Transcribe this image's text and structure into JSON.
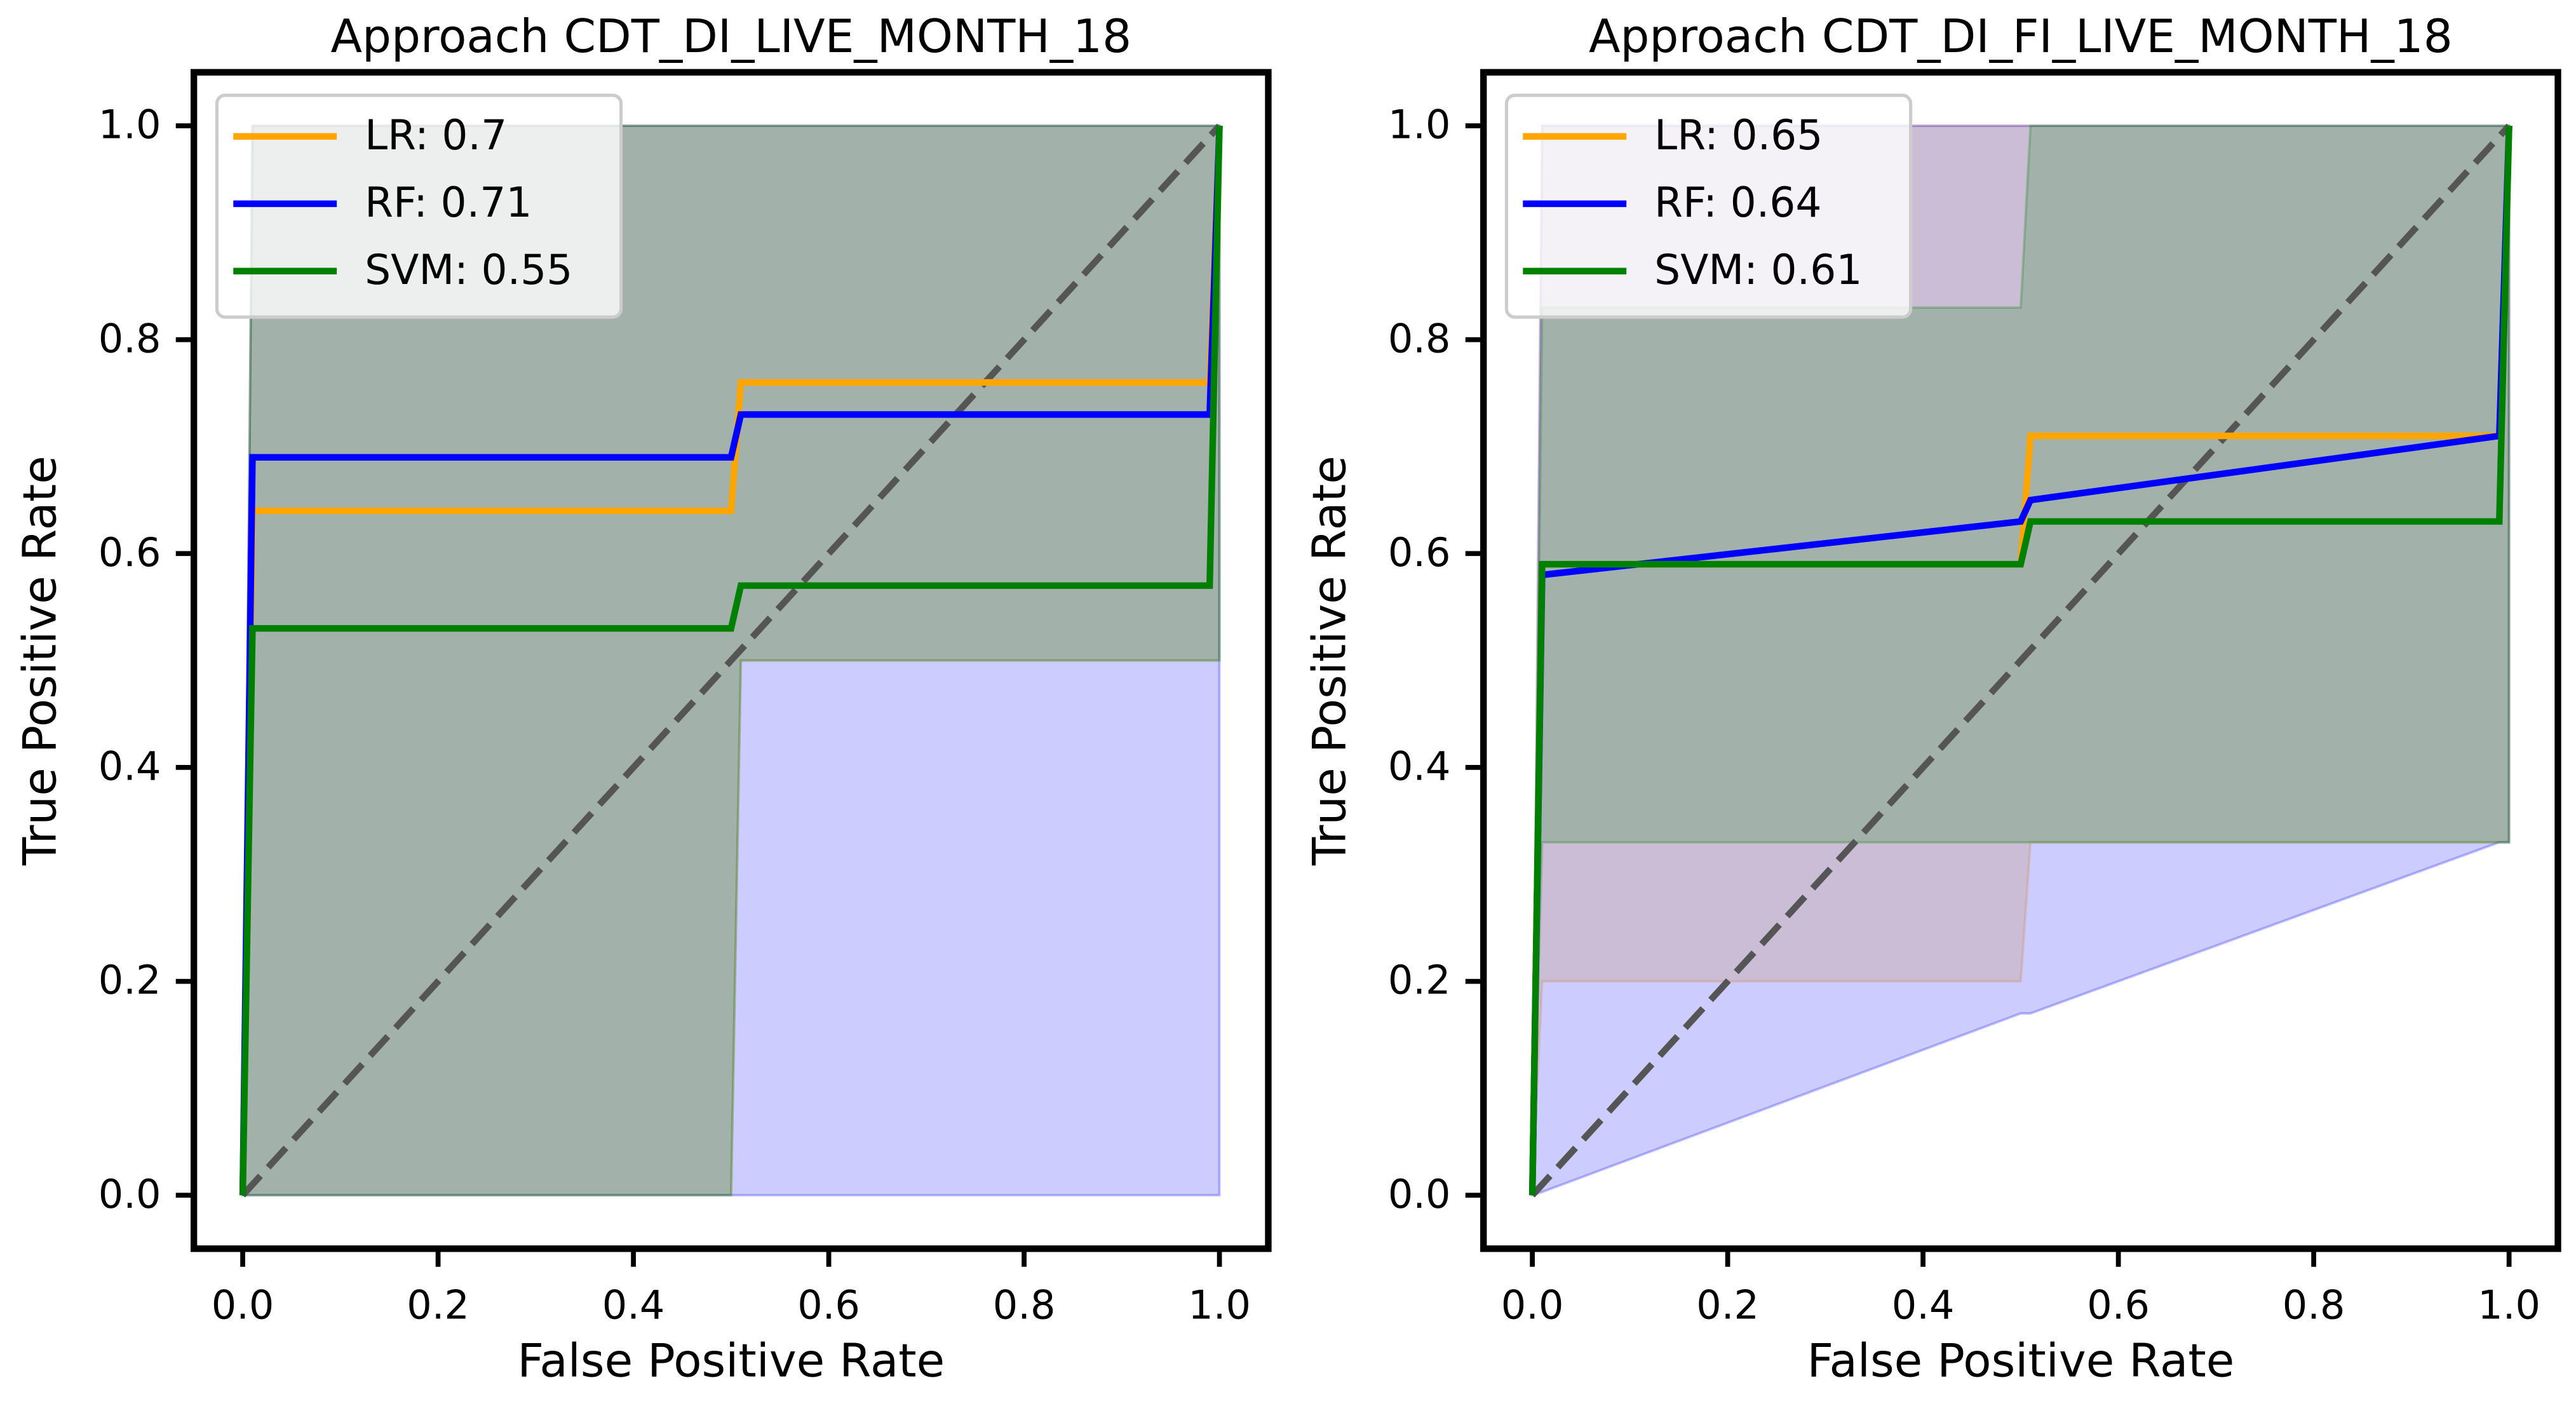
{
  "chart_data": [
    {
      "type": "line",
      "title": "Approach CDT_DI_LIVE_MONTH_18",
      "xlabel": "False Positive Rate",
      "ylabel": "True Positive Rate",
      "xlim": [
        -0.05,
        1.05
      ],
      "ylim": [
        -0.05,
        1.05
      ],
      "xticks": [
        {
          "value": 0,
          "label": "0.0"
        },
        0.2,
        0.4,
        0.6,
        0.8,
        {
          "value": 1,
          "label": "1.0"
        }
      ],
      "yticks": [
        {
          "value": 0,
          "label": "0.0"
        },
        0.2,
        0.4,
        0.6,
        0.8,
        {
          "value": 1,
          "label": "1.0"
        }
      ],
      "legend": "upper left",
      "reference_line": {
        "x": [
          0,
          1
        ],
        "values": [
          0,
          1
        ],
        "color": "#555555"
      },
      "series": [
        {
          "name": "LR: 0.7",
          "color": "#ffa500",
          "x": [
            0,
            0.01,
            0.5,
            0.51,
            0.99,
            1
          ],
          "values": [
            0,
            0.64,
            0.64,
            0.76,
            0.76,
            1
          ],
          "lower": [
            0,
            0,
            0,
            0.5,
            0.5,
            0.5
          ],
          "upper": [
            0,
            1,
            1,
            1,
            1,
            1
          ]
        },
        {
          "name": "RF: 0.71",
          "color": "#0000ff",
          "x": [
            0,
            0.01,
            0.5,
            0.51,
            0.99,
            1
          ],
          "values": [
            0,
            0.69,
            0.69,
            0.73,
            0.73,
            1
          ],
          "lower": [
            0,
            0,
            0,
            0,
            0,
            0
          ],
          "upper": [
            0,
            1,
            1,
            1,
            1,
            1
          ]
        },
        {
          "name": "SVM: 0.55",
          "color": "#008000",
          "x": [
            0,
            0.01,
            0.5,
            0.51,
            0.99,
            1
          ],
          "values": [
            0,
            0.53,
            0.53,
            0.57,
            0.57,
            1
          ],
          "lower": [
            0,
            0,
            0,
            0.5,
            0.5,
            0.5
          ],
          "upper": [
            0,
            1,
            1,
            1,
            1,
            1
          ]
        }
      ]
    },
    {
      "type": "line",
      "title": "Approach CDT_DI_FI_LIVE_MONTH_18",
      "xlabel": "False Positive Rate",
      "ylabel": "True Positive Rate",
      "xlim": [
        -0.05,
        1.05
      ],
      "ylim": [
        -0.05,
        1.05
      ],
      "xticks": [
        {
          "value": 0,
          "label": "0.0"
        },
        0.2,
        0.4,
        0.6,
        0.8,
        {
          "value": 1,
          "label": "1.0"
        }
      ],
      "yticks": [
        {
          "value": 0,
          "label": "0.0"
        },
        0.2,
        0.4,
        0.6,
        0.8,
        {
          "value": 1,
          "label": "1.0"
        }
      ],
      "legend": "upper left",
      "reference_line": {
        "x": [
          0,
          1
        ],
        "values": [
          0,
          1
        ],
        "color": "#555555"
      },
      "series": [
        {
          "name": "LR: 0.65",
          "color": "#ffa500",
          "x": [
            0,
            0.01,
            0.5,
            0.51,
            0.99,
            1
          ],
          "values": [
            0,
            0.59,
            0.59,
            0.71,
            0.71,
            1
          ],
          "lower": [
            0,
            0.2,
            0.2,
            0.33,
            0.33,
            0.33
          ],
          "upper": [
            0,
            1,
            1,
            1,
            1,
            1
          ]
        },
        {
          "name": "RF: 0.64",
          "color": "#0000ff",
          "x": [
            0,
            0.01,
            0.5,
            0.51,
            0.99,
            1
          ],
          "values": [
            0,
            0.58,
            0.63,
            0.65,
            0.71,
            1
          ],
          "lower": [
            0,
            0.003,
            0.17,
            0.17,
            0.33,
            0.33
          ],
          "upper": [
            0,
            1,
            1,
            1,
            1,
            1
          ]
        },
        {
          "name": "SVM: 0.61",
          "color": "#008000",
          "x": [
            0,
            0.01,
            0.5,
            0.51,
            0.99,
            1
          ],
          "values": [
            0,
            0.59,
            0.59,
            0.63,
            0.63,
            1
          ],
          "lower": [
            0,
            0.33,
            0.33,
            0.33,
            0.33,
            0.33
          ],
          "upper": [
            0,
            0.83,
            0.83,
            1,
            1,
            1
          ]
        }
      ]
    }
  ]
}
